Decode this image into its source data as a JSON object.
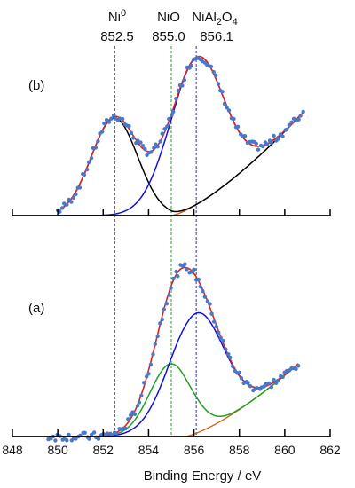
{
  "chart_data": {
    "type": "line",
    "xlabel": "Binding Energy / eV",
    "xlim": [
      848,
      862
    ],
    "x_ticks": [
      "848",
      "850",
      "852",
      "854",
      "856",
      "858",
      "860",
      "862"
    ],
    "reference_lines": [
      {
        "name": "Ni0",
        "label_main": "Ni",
        "label_sup": "0",
        "value_label": "852.5",
        "x": 852.5,
        "color": "#000000"
      },
      {
        "name": "NiO",
        "label_main": "NiO",
        "value_label": "855.0",
        "x": 855.0,
        "color": "#20a020"
      },
      {
        "name": "NiAl2O4",
        "label_main": "NiAl",
        "label_sub1": "2",
        "label_mid": "O",
        "label_sub2": "4",
        "value_label": "856.1",
        "x": 856.1,
        "color": "#2a2ae0"
      }
    ],
    "colors": {
      "data": "#4a78c8",
      "envelope": "#e02020",
      "background": "#d06010",
      "Ni0": "#000000",
      "NiO": "#20a020",
      "NiAl2O4": "#1010e0"
    },
    "panels": [
      {
        "label": "(b)",
        "x_start": 850.0,
        "x_end": 860.8,
        "background": {
          "y0": 0.0,
          "rise_start": 855.0,
          "y_end": 0.58
        },
        "components": [
          {
            "name": "Ni0",
            "center": 852.5,
            "height": 0.55,
            "fwhm": 2.4
          },
          {
            "name": "NiAl2O4",
            "center": 856.1,
            "height": 0.83,
            "fwhm": 2.8
          }
        ]
      },
      {
        "label": "(a)",
        "x_start": 849.6,
        "x_end": 860.6,
        "background": {
          "y0": 0.0,
          "rise_start": 855.6,
          "y_end": 0.4
        },
        "components": [
          {
            "name": "NiO",
            "center": 855.0,
            "height": 0.4,
            "fwhm": 2.2
          },
          {
            "name": "NiAl2O4",
            "center": 856.1,
            "height": 0.66,
            "fwhm": 2.8
          }
        ]
      }
    ]
  }
}
